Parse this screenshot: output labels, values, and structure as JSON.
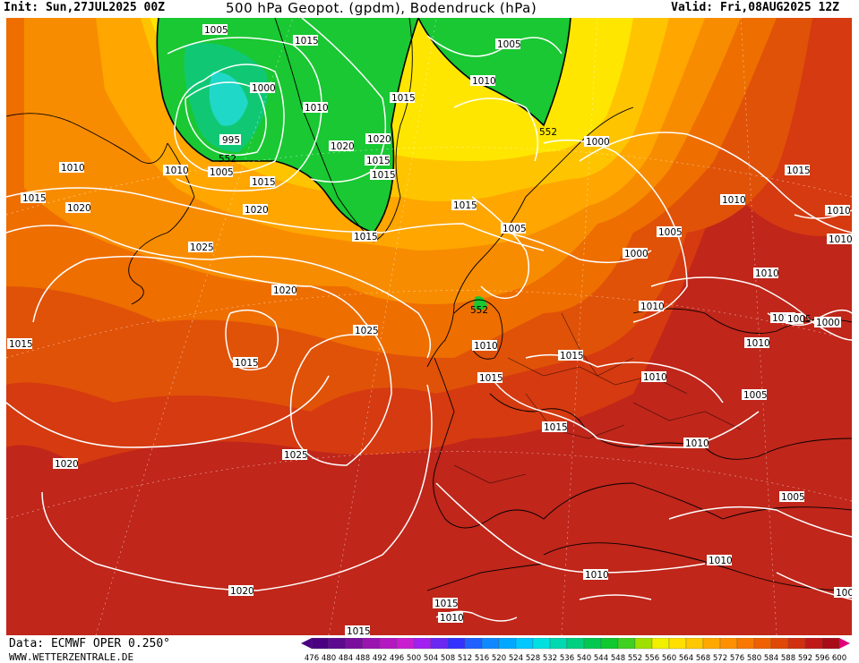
{
  "header": {
    "init": "Init: Sun,27JUL2025 00Z",
    "title": "500 hPa Geopot. (gpdm), Bodendruck (hPa)",
    "valid": "Valid: Fri,08AUG2025 12Z"
  },
  "footer": {
    "data_source": "Data: ECMWF OPER 0.250°",
    "website": "WWW.WETTERZENTRALE.DE"
  },
  "legend": {
    "values": [
      "476",
      "480",
      "484",
      "488",
      "492",
      "496",
      "500",
      "504",
      "508",
      "512",
      "516",
      "520",
      "524",
      "528",
      "532",
      "536",
      "540",
      "544",
      "548",
      "552",
      "556",
      "560",
      "564",
      "568",
      "572",
      "576",
      "580",
      "584",
      "588",
      "592",
      "596",
      "600"
    ],
    "colors": [
      "#4b0082",
      "#5e0a8f",
      "#7a0f9e",
      "#9a14b0",
      "#b418c0",
      "#c81ed0",
      "#a020f0",
      "#6a28f0",
      "#3232ff",
      "#2060ff",
      "#1088ff",
      "#00a8ff",
      "#00c8ff",
      "#00e0e0",
      "#00d8b0",
      "#00d080",
      "#00c850",
      "#10c830",
      "#40d020",
      "#a0e000",
      "#f0f000",
      "#ffe000",
      "#ffc800",
      "#ffa800",
      "#ff9000",
      "#f87800",
      "#f06000",
      "#e04808",
      "#d03010",
      "#c01818",
      "#a80c18",
      "#e0007a"
    ]
  },
  "map": {
    "pressure_labels": [
      {
        "text": "1005"
      },
      {
        "text": "1015"
      },
      {
        "text": "1005"
      },
      {
        "text": "1000"
      },
      {
        "text": "1010"
      },
      {
        "text": "1015"
      },
      {
        "text": "1010"
      },
      {
        "text": "995"
      },
      {
        "text": "1020"
      },
      {
        "text": "1020"
      },
      {
        "text": "552"
      },
      {
        "text": "1015"
      },
      {
        "text": "552"
      },
      {
        "text": "1000"
      },
      {
        "text": "1010"
      },
      {
        "text": "1010"
      },
      {
        "text": "1005"
      },
      {
        "text": "1015"
      },
      {
        "text": "1015"
      },
      {
        "text": "1015"
      },
      {
        "text": "1020"
      },
      {
        "text": "1020"
      },
      {
        "text": "1015"
      },
      {
        "text": "1015"
      },
      {
        "text": "1010"
      },
      {
        "text": "1010"
      },
      {
        "text": "1005"
      },
      {
        "text": "1005"
      },
      {
        "text": "1000"
      },
      {
        "text": "1025"
      },
      {
        "text": "1020"
      },
      {
        "text": "1010"
      },
      {
        "text": "552"
      },
      {
        "text": "1010"
      },
      {
        "text": "1010"
      },
      {
        "text": "1010"
      },
      {
        "text": "1010"
      },
      {
        "text": "1005"
      },
      {
        "text": "1000"
      },
      {
        "text": "1015"
      },
      {
        "text": "1025"
      },
      {
        "text": "1015"
      },
      {
        "text": "1010"
      },
      {
        "text": "1015"
      },
      {
        "text": "1015"
      },
      {
        "text": "1015"
      },
      {
        "text": "1005"
      },
      {
        "text": "1025"
      },
      {
        "text": "1010"
      },
      {
        "text": "1020"
      },
      {
        "text": "1005"
      },
      {
        "text": "1010"
      },
      {
        "text": "1010"
      },
      {
        "text": "1020"
      },
      {
        "text": "1015"
      },
      {
        "text": "1010"
      },
      {
        "text": "1000"
      },
      {
        "text": "1015"
      },
      {
        "text": "1015"
      },
      {
        "text": "1010"
      }
    ]
  }
}
